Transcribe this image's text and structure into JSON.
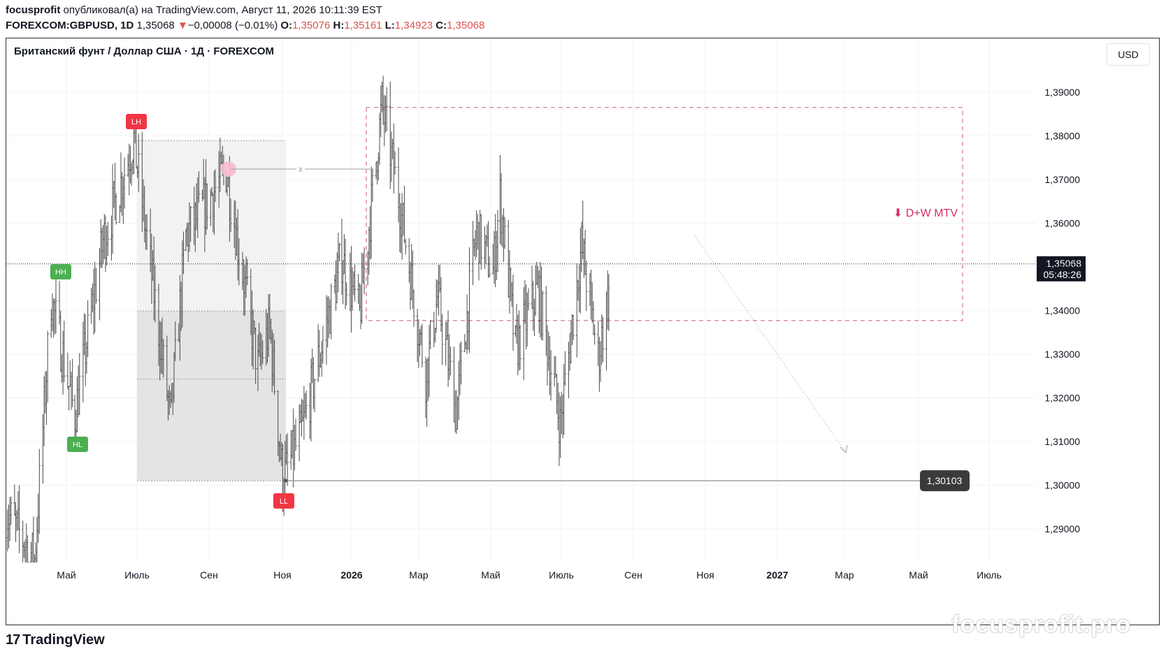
{
  "header": {
    "author": "focusprofit",
    "published_text": "опубликовал(а) на TradingView.com, Август 11, 2026 10:11:39 EST",
    "symbol": "FOREXCOM:GBPUSD, 1D",
    "last": "1,35068",
    "change_arrow": "▼",
    "change": "−0,00008 (−0.01%)",
    "open_label": "O:",
    "open": "1,35076",
    "high_label": "H:",
    "high": "1,35161",
    "low_label": "L:",
    "low": "1,34923",
    "close_label": "C:",
    "close": "1,35068",
    "down_color": "#d9534f"
  },
  "pane": {
    "title": "Британский фунт / Доллар США · 1Д · FOREXCOM",
    "currency_button": "USD"
  },
  "chart_data": {
    "type": "ohlc-bar",
    "symbol": "GBPUSD",
    "timeframe": "1D",
    "y_axis": {
      "range": [
        1.282,
        1.402
      ],
      "ticks": [
        "1,39000",
        "1,38000",
        "1,37000",
        "1,36000",
        "1,35000",
        "1,34000",
        "1,33000",
        "1,32000",
        "1,31000",
        "1,30000",
        "1,29000"
      ],
      "tick_values": [
        1.39,
        1.38,
        1.37,
        1.36,
        1.35,
        1.34,
        1.33,
        1.32,
        1.31,
        1.3,
        1.29
      ]
    },
    "x_axis": {
      "ticks": [
        "Май",
        "Июль",
        "Сен",
        "Ноя",
        "2026",
        "Мар",
        "Май",
        "Июль",
        "Сен",
        "Ноя",
        "2027",
        "Мар",
        "Май",
        "Июль"
      ],
      "bold_ticks": [
        "2026",
        "2027"
      ]
    },
    "price_key_points": [
      {
        "date": "2025-03-15",
        "price": 1.294
      },
      {
        "date": "2025-04-08",
        "price": 1.283
      },
      {
        "date": "2025-04-22",
        "price": 1.343
      },
      {
        "date": "2025-05-12",
        "price": 1.316
      },
      {
        "date": "2025-06-05",
        "price": 1.356
      },
      {
        "date": "2025-07-01",
        "price": 1.379
      },
      {
        "date": "2025-08-01",
        "price": 1.315
      },
      {
        "date": "2025-08-14",
        "price": 1.357
      },
      {
        "date": "2025-09-17",
        "price": 1.372
      },
      {
        "date": "2025-10-14",
        "price": 1.327
      },
      {
        "date": "2025-10-24",
        "price": 1.336
      },
      {
        "date": "2025-11-04",
        "price": 1.301
      },
      {
        "date": "2025-11-20",
        "price": 1.312
      },
      {
        "date": "2025-12-24",
        "price": 1.352
      },
      {
        "date": "2026-01-08",
        "price": 1.339
      },
      {
        "date": "2026-01-27",
        "price": 1.387
      },
      {
        "date": "2026-02-12",
        "price": 1.363
      },
      {
        "date": "2026-03-05",
        "price": 1.325
      },
      {
        "date": "2026-03-15",
        "price": 1.343
      },
      {
        "date": "2026-03-31",
        "price": 1.317
      },
      {
        "date": "2026-04-17",
        "price": 1.358
      },
      {
        "date": "2026-05-01",
        "price": 1.349
      },
      {
        "date": "2026-05-07",
        "price": 1.366
      },
      {
        "date": "2026-05-20",
        "price": 1.331
      },
      {
        "date": "2026-06-08",
        "price": 1.345
      },
      {
        "date": "2026-06-27",
        "price": 1.314
      },
      {
        "date": "2026-07-15",
        "price": 1.355
      },
      {
        "date": "2026-07-29",
        "price": 1.329
      },
      {
        "date": "2026-08-11",
        "price": 1.3507
      }
    ],
    "last_price": {
      "value": 1.35068,
      "label": "1,35068",
      "countdown": "05:48:26"
    },
    "level_line": {
      "value": 1.30103,
      "label": "1,30103"
    },
    "zone": {
      "top": 1.3865,
      "bottom": 1.3377,
      "label": "⬇ D+W MTV",
      "color": "#c2185b"
    },
    "swing_labels": [
      {
        "text": "LH",
        "color": "#f23645"
      },
      {
        "text": "HH",
        "color": "#4caf50"
      },
      {
        "text": "HL",
        "color": "#4caf50"
      },
      {
        "text": "LL",
        "color": "#f23645"
      }
    ],
    "range_box": {
      "top": 1.3789,
      "mid": 1.3399,
      "inner": 1.3243,
      "bottom": 1.301
    },
    "x_marker": "x",
    "grid": true
  },
  "footer": {
    "logo_mark": "17",
    "logo_text": "TradingView",
    "watermark": "focusprofit.pro"
  }
}
